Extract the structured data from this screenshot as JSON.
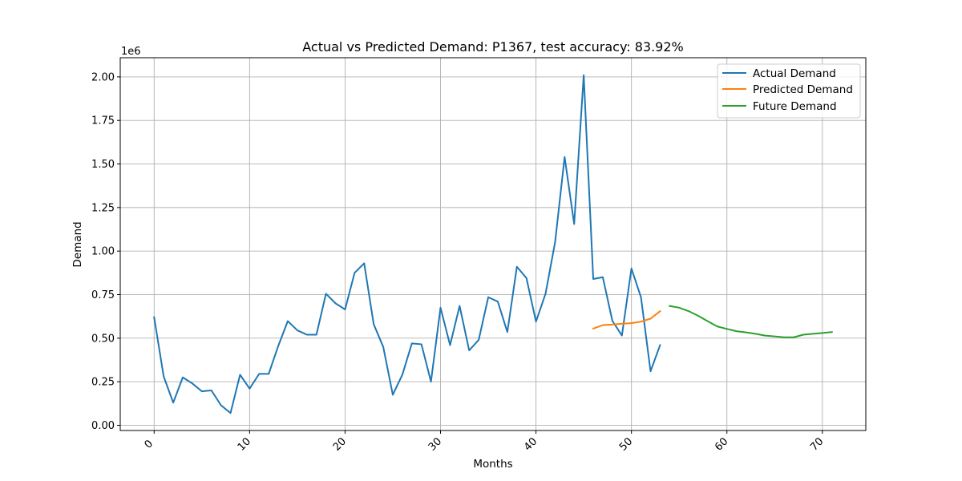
{
  "chart_data": {
    "type": "line",
    "title": "Actual vs Predicted Demand: P1367, test accuracy: 83.92%",
    "xlabel": "Months",
    "ylabel": "Demand",
    "y_scale_label": "1e6",
    "xlim": [
      -3.55,
      74.55
    ],
    "ylim": [
      -0.03,
      2.11
    ],
    "x_ticks": [
      0,
      10,
      20,
      30,
      40,
      50,
      60,
      70
    ],
    "x_tick_labels": [
      "0",
      "10",
      "20",
      "30",
      "40",
      "50",
      "60",
      "70"
    ],
    "y_ticks": [
      0,
      0.25,
      0.5,
      0.75,
      1.0,
      1.25,
      1.5,
      1.75,
      2.0
    ],
    "y_tick_labels": [
      "0.00",
      "0.25",
      "0.50",
      "0.75",
      "1.00",
      "1.25",
      "1.50",
      "1.75",
      "2.00"
    ],
    "grid": true,
    "legend_position": "top-right",
    "series": [
      {
        "name": "Actual Demand",
        "color": "#1f77b4",
        "x": [
          0,
          1,
          2,
          3,
          4,
          5,
          6,
          7,
          8,
          9,
          10,
          11,
          12,
          13,
          14,
          15,
          16,
          17,
          18,
          19,
          20,
          21,
          22,
          23,
          24,
          25,
          26,
          27,
          28,
          29,
          30,
          31,
          32,
          33,
          34,
          35,
          36,
          37,
          38,
          39,
          40,
          41,
          42,
          43,
          44,
          45,
          46,
          47,
          48,
          49,
          50,
          51,
          52,
          53
        ],
        "y": [
          0.62,
          0.28,
          0.13,
          0.275,
          0.24,
          0.195,
          0.2,
          0.115,
          0.07,
          0.29,
          0.21,
          0.295,
          0.295,
          0.455,
          0.598,
          0.545,
          0.52,
          0.52,
          0.755,
          0.7,
          0.665,
          0.875,
          0.93,
          0.58,
          0.45,
          0.175,
          0.29,
          0.47,
          0.465,
          0.25,
          0.675,
          0.46,
          0.685,
          0.43,
          0.49,
          0.735,
          0.71,
          0.535,
          0.91,
          0.845,
          0.595,
          0.755,
          1.05,
          1.54,
          1.155,
          2.01,
          0.84,
          0.85,
          0.6,
          0.515,
          0.9,
          0.735,
          0.31,
          0.46
        ]
      },
      {
        "name": "Predicted Demand",
        "color": "#ff7f0e",
        "x": [
          46,
          47,
          48,
          49,
          50,
          51,
          52,
          53
        ],
        "y": [
          0.555,
          0.575,
          0.578,
          0.583,
          0.586,
          0.595,
          0.612,
          0.655
        ]
      },
      {
        "name": "Future Demand",
        "color": "#2ca02c",
        "x": [
          54,
          55,
          56,
          57,
          58,
          59,
          60,
          61,
          62,
          63,
          64,
          65,
          66,
          67,
          68,
          69,
          70,
          71
        ],
        "y": [
          0.685,
          0.675,
          0.655,
          0.628,
          0.597,
          0.567,
          0.553,
          0.54,
          0.533,
          0.525,
          0.515,
          0.51,
          0.505,
          0.505,
          0.52,
          0.525,
          0.53,
          0.535
        ]
      }
    ]
  }
}
